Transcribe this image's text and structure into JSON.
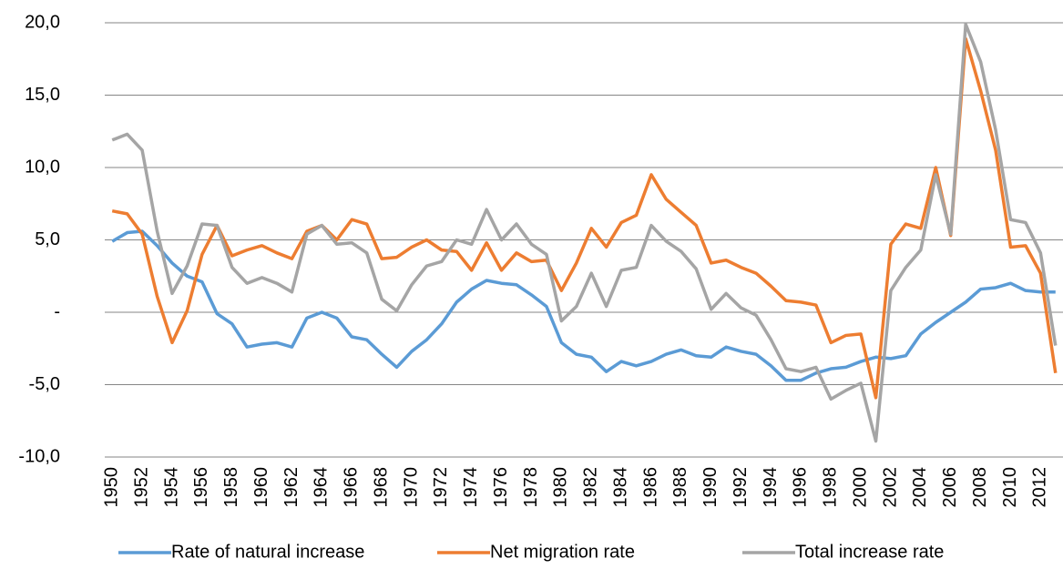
{
  "chart_data": {
    "type": "line",
    "x": [
      1950,
      1951,
      1952,
      1953,
      1954,
      1955,
      1956,
      1957,
      1958,
      1959,
      1960,
      1961,
      1962,
      1963,
      1964,
      1965,
      1966,
      1967,
      1968,
      1969,
      1970,
      1971,
      1972,
      1973,
      1974,
      1975,
      1976,
      1977,
      1978,
      1979,
      1980,
      1981,
      1982,
      1983,
      1984,
      1985,
      1986,
      1987,
      1988,
      1989,
      1990,
      1991,
      1992,
      1993,
      1994,
      1995,
      1996,
      1997,
      1998,
      1999,
      2000,
      2001,
      2002,
      2003,
      2004,
      2005,
      2006,
      2007,
      2008,
      2009,
      2010,
      2011,
      2012,
      2013
    ],
    "xlim": [
      1949.5,
      2013.5
    ],
    "xticks": [
      1950,
      1952,
      1954,
      1956,
      1958,
      1960,
      1962,
      1964,
      1966,
      1968,
      1970,
      1972,
      1974,
      1976,
      1978,
      1980,
      1982,
      1984,
      1986,
      1988,
      1990,
      1992,
      1994,
      1996,
      1998,
      2000,
      2002,
      2004,
      2006,
      2008,
      2010,
      2012
    ],
    "ylim": [
      -10,
      20
    ],
    "yticks": [
      {
        "value": -10,
        "label": "-10,0"
      },
      {
        "value": -5,
        "label": "-5,0"
      },
      {
        "value": 0,
        "label": "-"
      },
      {
        "value": 5,
        "label": "5,0"
      },
      {
        "value": 10,
        "label": "10,0"
      },
      {
        "value": 15,
        "label": "15,0"
      },
      {
        "value": 20,
        "label": "20,0"
      }
    ],
    "grid": true,
    "legend": "bottom",
    "series": [
      {
        "name": "Rate of  natural increase",
        "color": "#5b9bd5",
        "values": [
          4.9,
          5.5,
          5.6,
          4.6,
          3.4,
          2.5,
          2.1,
          -0.1,
          -0.8,
          -2.4,
          -2.2,
          -2.1,
          -2.4,
          -0.4,
          0,
          -0.4,
          -1.7,
          -1.9,
          -2.9,
          -3.8,
          -2.7,
          -1.9,
          -0.8,
          0.7,
          1.6,
          2.2,
          2.0,
          1.9,
          1.2,
          0.4,
          -2.1,
          -2.9,
          -3.1,
          -4.1,
          -3.4,
          -3.7,
          -3.4,
          -2.9,
          -2.6,
          -3.0,
          -3.1,
          -2.4,
          -2.7,
          -2.9,
          -3.7,
          -4.7,
          -4.7,
          -4.2,
          -3.9,
          -3.8,
          -3.4,
          -3.1,
          -3.2,
          -3.0,
          -1.5,
          -0.7,
          0,
          0.7,
          1.6,
          1.7,
          2.0,
          1.5,
          1.4,
          1.4
        ]
      },
      {
        "name": "Net migration rate",
        "color": "#ed7d31",
        "values": [
          7.0,
          6.8,
          5.4,
          1.1,
          -2.1,
          0.1,
          4.0,
          6.0,
          3.9,
          4.3,
          4.6,
          4.1,
          3.7,
          5.6,
          6.0,
          5.0,
          6.4,
          6.1,
          3.7,
          3.8,
          4.5,
          5.0,
          4.3,
          4.2,
          2.9,
          4.8,
          2.9,
          4.1,
          3.5,
          3.6,
          1.5,
          3.4,
          5.8,
          4.5,
          6.2,
          6.7,
          9.5,
          7.8,
          6.9,
          6.0,
          3.4,
          3.6,
          3.1,
          2.7,
          1.8,
          0.8,
          0.7,
          0.5,
          -2.1,
          -1.6,
          -1.5,
          -5.9,
          4.7,
          6.1,
          5.8,
          10.0,
          5.3,
          18.9,
          15.3,
          11.2,
          4.5,
          4.6,
          2.7,
          -4.2
        ]
      },
      {
        "name": "Total increase rate",
        "color": "#a5a5a5",
        "values": [
          11.9,
          12.3,
          11.2,
          5.6,
          1.3,
          3.2,
          6.1,
          6.0,
          3.1,
          2.0,
          2.4,
          2.0,
          1.4,
          5.4,
          6.0,
          4.7,
          4.8,
          4.1,
          0.9,
          0.1,
          1.9,
          3.2,
          3.5,
          5.0,
          4.7,
          7.1,
          5.0,
          6.1,
          4.7,
          4.0,
          -0.6,
          0.4,
          2.7,
          0.4,
          2.9,
          3.1,
          6.0,
          4.9,
          4.2,
          3.0,
          0.2,
          1.3,
          0.3,
          -0.2,
          -1.9,
          -3.9,
          -4.1,
          -3.8,
          -6.0,
          -5.4,
          -4.9,
          -8.9,
          1.5,
          3.1,
          4.3,
          9.5,
          5.4,
          19.9,
          17.3,
          12.6,
          6.4,
          6.2,
          4.1,
          -2.3
        ]
      }
    ]
  }
}
